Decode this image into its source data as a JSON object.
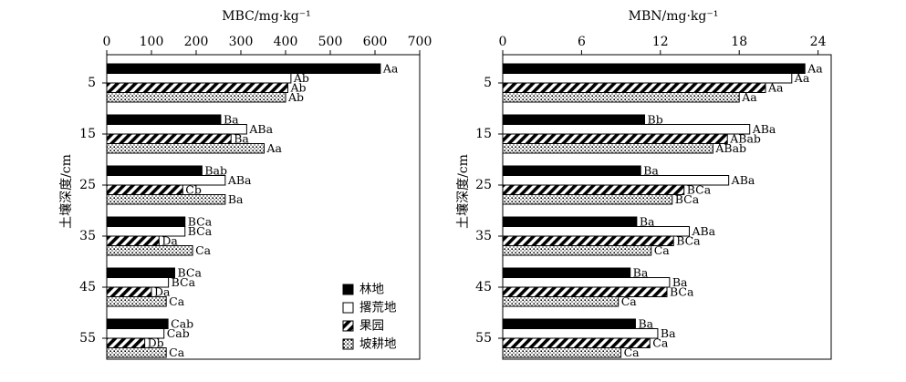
{
  "y_axis_label": "土壤深度/cm",
  "legend": [
    {
      "label": "林地",
      "pattern": "solid"
    },
    {
      "label": "撂荒地",
      "pattern": "open"
    },
    {
      "label": "果园",
      "pattern": "hatch"
    },
    {
      "label": "坡耕地",
      "pattern": "dots"
    }
  ],
  "chart_data": [
    {
      "type": "bar",
      "orientation": "horizontal",
      "xlabel": "MBC/mg·kg⁻¹",
      "ylabel": "土壤深度/cm",
      "xlim": [
        0,
        700
      ],
      "x_ticks": [
        0,
        100,
        200,
        300,
        400,
        500,
        600,
        700
      ],
      "x_tick_labels": [
        "0",
        "100",
        "200",
        "300",
        "400",
        "500",
        "600",
        "700"
      ],
      "categories": [
        "5",
        "15",
        "25",
        "35",
        "45",
        "55"
      ],
      "grid": false,
      "legend_position": "bottom-right",
      "series": [
        {
          "name": "林地",
          "values": [
            612,
            255,
            213,
            175,
            152,
            137
          ],
          "labels": [
            "Aa",
            "Ba",
            "Bab",
            "BCa",
            "BCa",
            "Cab"
          ]
        },
        {
          "name": "撂荒地",
          "values": [
            412,
            313,
            265,
            175,
            138,
            128
          ],
          "labels": [
            "Ab",
            "ABa",
            "ABa",
            "BCa",
            "BCa",
            "Cab"
          ]
        },
        {
          "name": "果园",
          "values": [
            405,
            278,
            170,
            117,
            100,
            85
          ],
          "labels": [
            "Ab",
            "Ba",
            "Cb",
            "Da",
            "Da",
            "Db"
          ]
        },
        {
          "name": "坡耕地",
          "values": [
            400,
            352,
            265,
            192,
            133,
            133
          ],
          "labels": [
            "Ab",
            "Aa",
            "Ba",
            "Ca",
            "Ca",
            "Ca"
          ]
        }
      ]
    },
    {
      "type": "bar",
      "orientation": "horizontal",
      "xlabel": "MBN/mg·kg⁻¹",
      "ylabel": "土壤深度/cm",
      "xlim": [
        0,
        25
      ],
      "x_ticks": [
        0,
        6,
        12,
        18,
        24
      ],
      "x_tick_labels": [
        "0",
        "6",
        "12",
        "18",
        "24"
      ],
      "categories": [
        "5",
        "15",
        "25",
        "35",
        "45",
        "55"
      ],
      "grid": false,
      "series": [
        {
          "name": "林地",
          "values": [
            23.0,
            10.8,
            10.5,
            10.2,
            9.7,
            10.1
          ],
          "labels": [
            "Aa",
            "Bb",
            "Ba",
            "Ba",
            "Ba",
            "Ba"
          ]
        },
        {
          "name": "撂荒地",
          "values": [
            22.0,
            18.8,
            17.2,
            14.2,
            12.7,
            11.8
          ],
          "labels": [
            "Aa",
            "ABa",
            "ABa",
            "ABa",
            "Ba",
            "Ba"
          ]
        },
        {
          "name": "果园",
          "values": [
            20.0,
            17.1,
            13.8,
            13.0,
            12.5,
            11.2
          ],
          "labels": [
            "Aa",
            "ABab",
            "BCa",
            "BCa",
            "BCa",
            "Ca"
          ]
        },
        {
          "name": "坡耕地",
          "values": [
            18.0,
            16.0,
            12.9,
            11.3,
            8.8,
            9.0
          ],
          "labels": [
            "Aa",
            "ABab",
            "BCa",
            "Ca",
            "Ca",
            "Ca"
          ]
        }
      ]
    }
  ]
}
